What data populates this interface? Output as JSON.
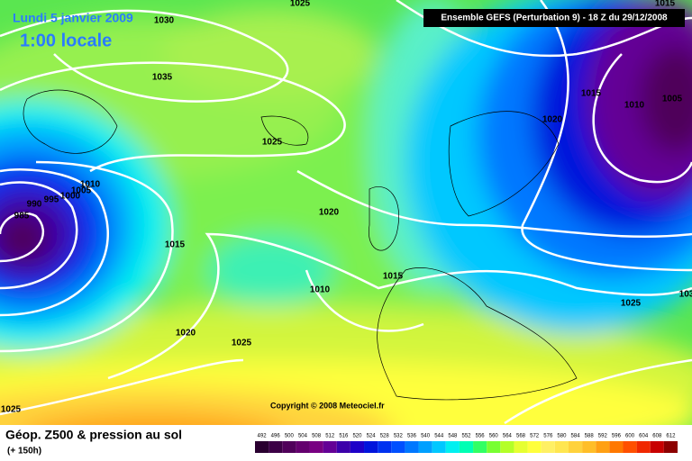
{
  "header": {
    "date": "Lundi 5 janvier 2009",
    "time": "1:00 locale",
    "model": "Ensemble GEFS (Perturbation 9)  -  18 Z du 29/12/2008"
  },
  "map": {
    "copyright": "Copyright © 2008 Meteociel.fr",
    "isobar_labels": [
      "1030",
      "1025",
      "1035",
      "1025",
      "1015",
      "1020",
      "1010",
      "1005",
      "1015",
      "1010",
      "1005",
      "1000",
      "995",
      "990",
      "985",
      "1020",
      "1015",
      "1015",
      "1010",
      "1020",
      "1025",
      "1025",
      "1025",
      "103"
    ]
  },
  "footer": {
    "title": "Géop. Z500 & pression au sol",
    "lead": "(+ 150h)"
  },
  "scale": {
    "labels": [
      492,
      496,
      500,
      504,
      508,
      512,
      516,
      520,
      524,
      528,
      532,
      536,
      540,
      544,
      548,
      552,
      556,
      560,
      564,
      568,
      572,
      576,
      580,
      584,
      588,
      592,
      596,
      600,
      604,
      608,
      612
    ],
    "colors": [
      "#2a0030",
      "#3c0046",
      "#50005a",
      "#64006e",
      "#780082",
      "#640096",
      "#3c00aa",
      "#1e00c8",
      "#0014dc",
      "#0032f0",
      "#0050ff",
      "#0078ff",
      "#00a0ff",
      "#00c8ff",
      "#00f0f0",
      "#00ffb4",
      "#32ff64",
      "#78ff32",
      "#b4ff28",
      "#e6ff32",
      "#ffff3c",
      "#fff064",
      "#ffe650",
      "#ffd23c",
      "#ffbe28",
      "#ffa014",
      "#ff7800",
      "#ff5000",
      "#f02800",
      "#c80000",
      "#8c0000"
    ]
  }
}
